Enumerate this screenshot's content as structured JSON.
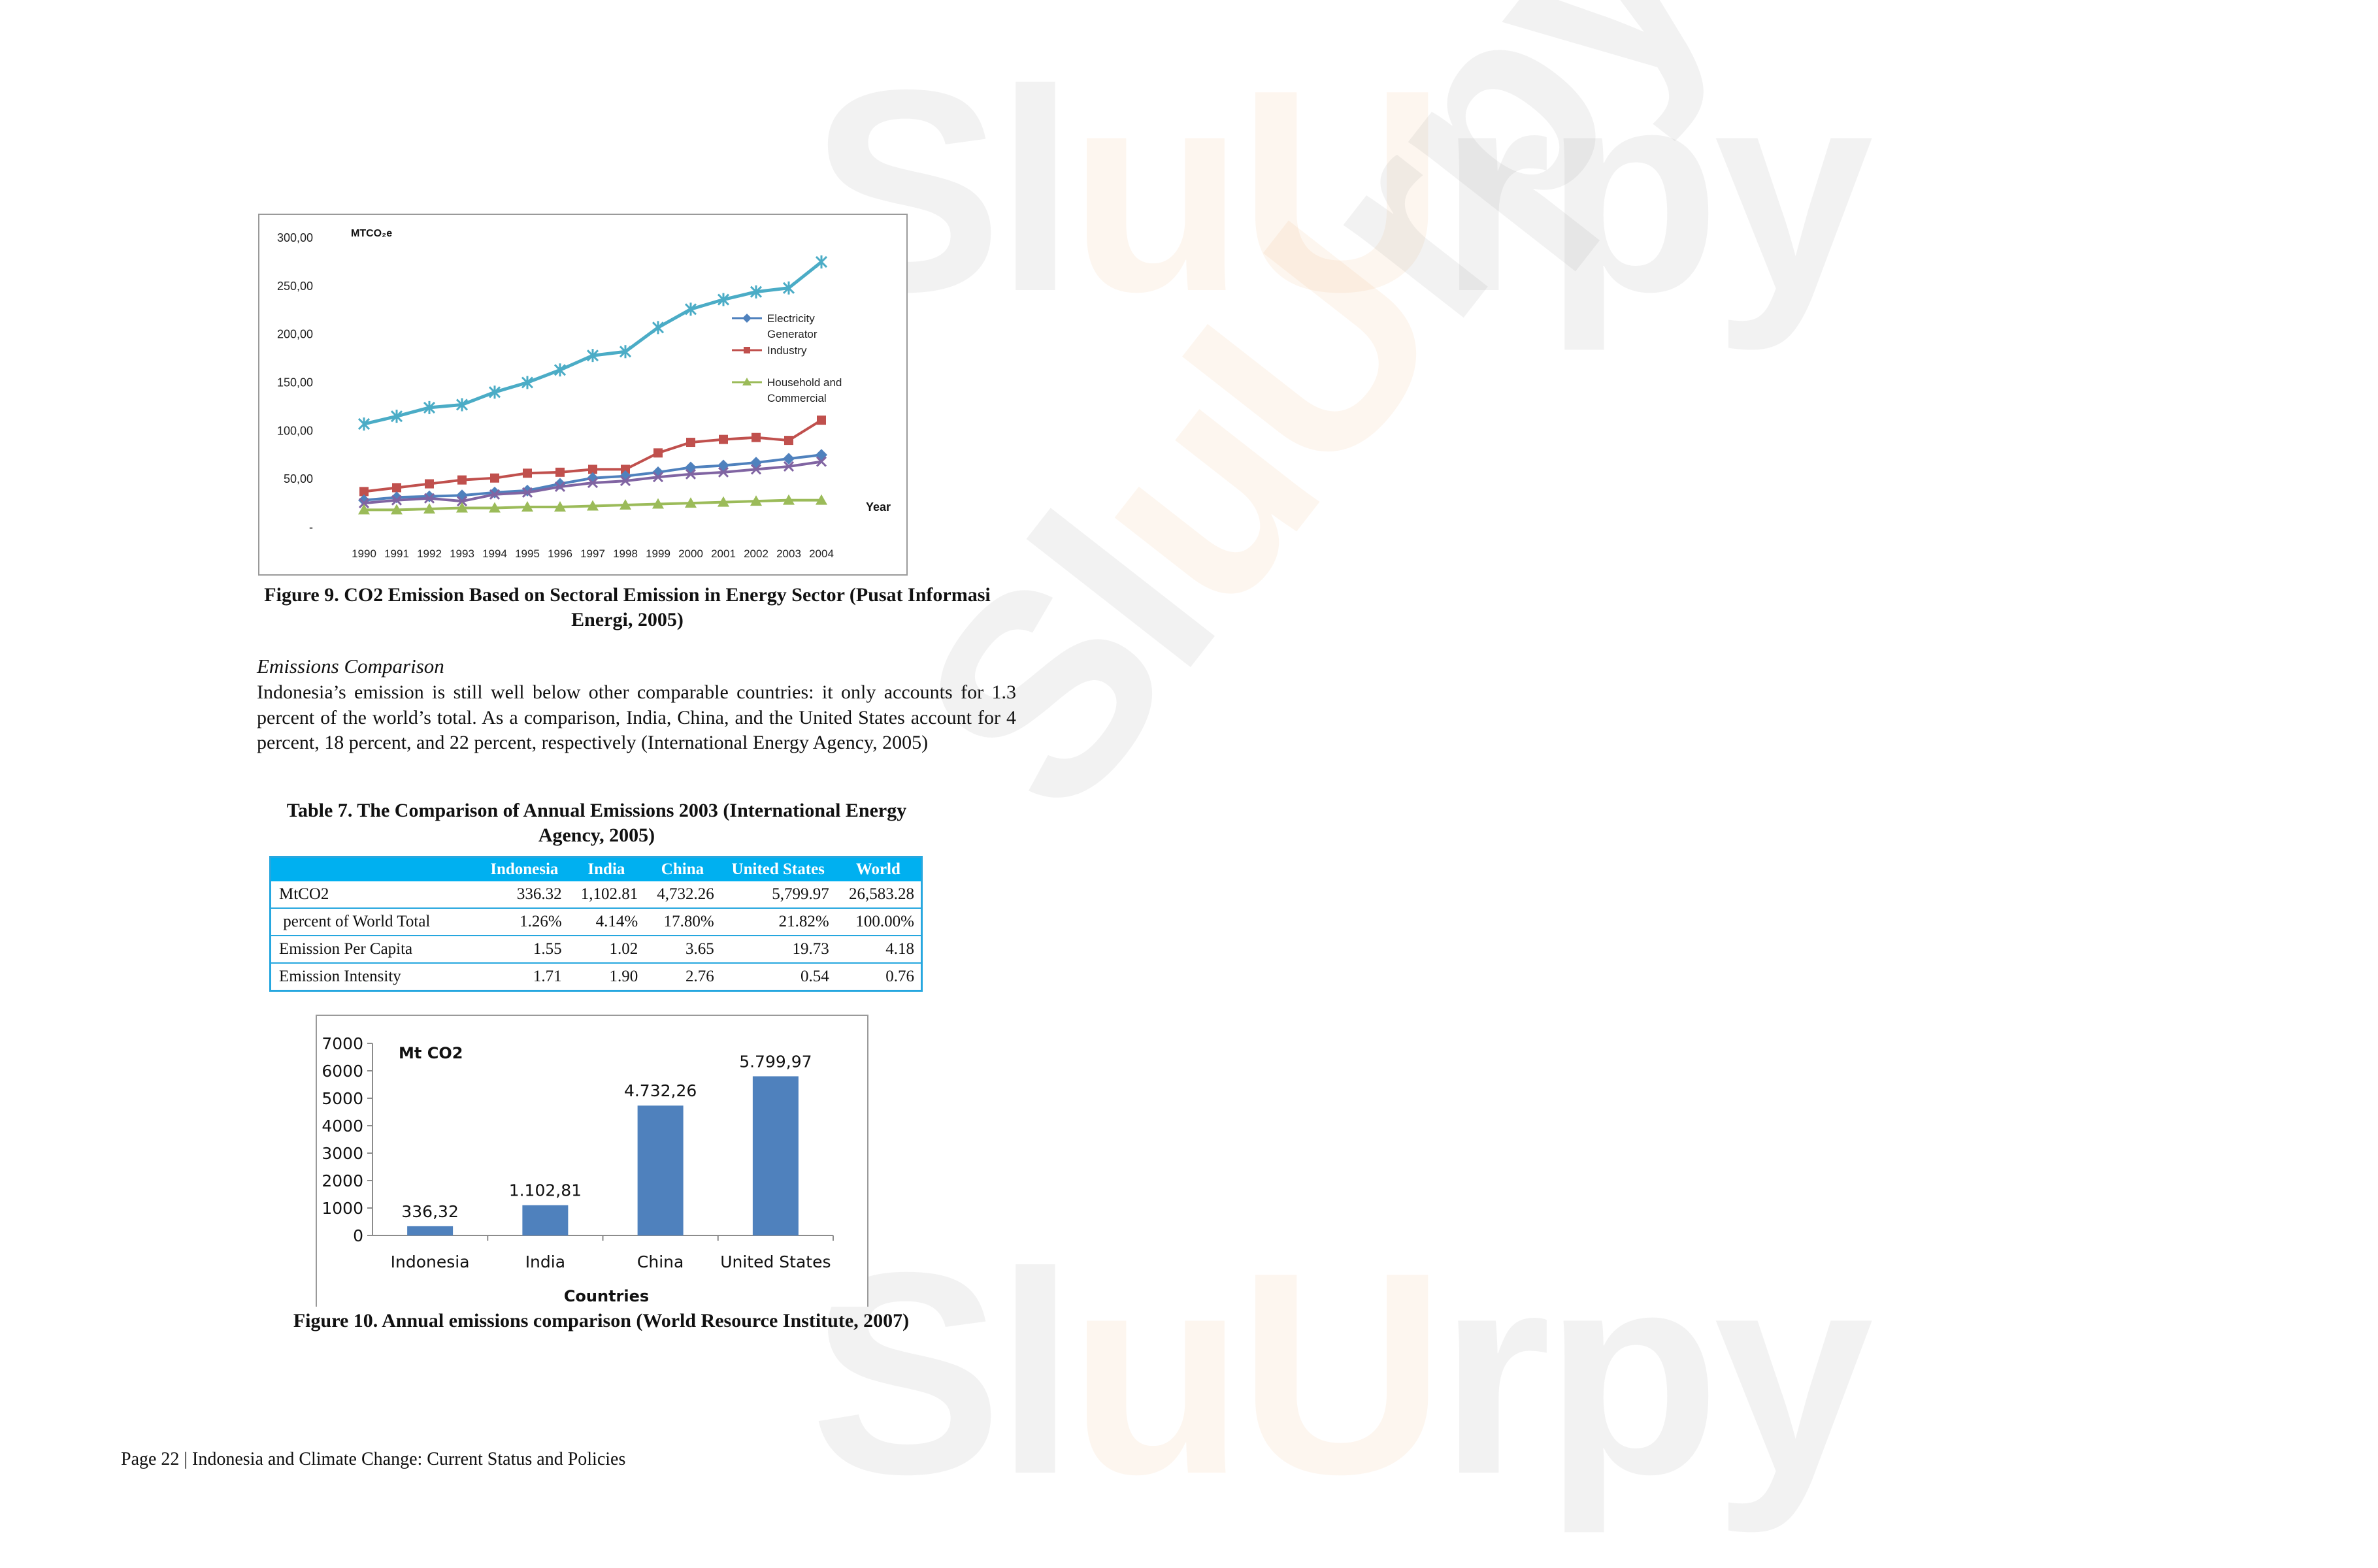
{
  "watermark": {
    "brand": "Sluurpy"
  },
  "figure9": {
    "caption": "Figure 9.  CO2 Emission Based on Sectoral Emission in Energy Sector (Pusat Informasi Energi, 2005)"
  },
  "section": {
    "title": "Emissions Comparison",
    "paragraph": "Indonesia’s emission is still well below other comparable countries: it only accounts for 1.3 percent of the world’s total.  As a comparison, India, China, and the United States account for 4 percent, 18 percent, and 22 percent, respectively (International Energy Agency, 2005)"
  },
  "table7": {
    "title": "Table 7. The Comparison of Annual Emissions 2003 (International Energy Agency, 2005)",
    "headers": [
      "",
      "Indonesia",
      "India",
      "China",
      "United States",
      "World"
    ],
    "rows": [
      [
        "MtCO2",
        "336.32",
        "1,102.81",
        "4,732.26",
        "5,799.97",
        "26,583.28"
      ],
      [
        " percent of World Total",
        "1.26%",
        "4.14%",
        "17.80%",
        "21.82%",
        "100.00%"
      ],
      [
        "Emission Per Capita",
        "1.55",
        "1.02",
        "3.65",
        "19.73",
        "4.18"
      ],
      [
        "Emission Intensity",
        "1.71",
        "1.90",
        "2.76",
        "0.54",
        "0.76"
      ]
    ]
  },
  "figure10": {
    "caption": "Figure 10.  Annual emissions comparison (World Resource Institute, 2007)"
  },
  "footer": {
    "text": "Page 22 | Indonesia and Climate Change: Current Status and Policies"
  },
  "chart_data": [
    {
      "type": "line",
      "title": "",
      "unit_label": "MTCO₂e",
      "xlabel": "Year",
      "ylabel": "",
      "x": [
        "1990",
        "1991",
        "1992",
        "1993",
        "1994",
        "1995",
        "1996",
        "1997",
        "1998",
        "1999",
        "2000",
        "2001",
        "2002",
        "2003",
        "2004"
      ],
      "ylim": [
        0,
        300
      ],
      "yticks": [
        "-",
        "50,00",
        "100,00",
        "150,00",
        "200,00",
        "250,00",
        "300,00"
      ],
      "grid": false,
      "legend_position": "right",
      "series": [
        {
          "name": "",
          "color": "#4bacc6",
          "marker": "star",
          "values": [
            107,
            115,
            124,
            127,
            140,
            150,
            163,
            178,
            182,
            207,
            226,
            236,
            244,
            248,
            275
          ]
        },
        {
          "name": "Industry",
          "color": "#c0504d",
          "marker": "square",
          "values": [
            37,
            41,
            45,
            49,
            51,
            56,
            57,
            60,
            60,
            77,
            88,
            91,
            93,
            90,
            111
          ]
        },
        {
          "name": "Electricity Generator",
          "color": "#4f81bd",
          "marker": "diamond",
          "values": [
            28,
            31,
            32,
            33,
            36,
            38,
            45,
            51,
            53,
            57,
            62,
            64,
            67,
            71,
            75
          ]
        },
        {
          "name": "",
          "color": "#8064a2",
          "marker": "x",
          "values": [
            25,
            28,
            30,
            27,
            34,
            36,
            42,
            46,
            48,
            52,
            55,
            57,
            60,
            63,
            68
          ]
        },
        {
          "name": "Household and Commercial",
          "color": "#9bbb59",
          "marker": "triangle",
          "values": [
            18,
            18,
            19,
            20,
            20,
            21,
            21,
            22,
            23,
            24,
            25,
            26,
            27,
            28,
            28
          ]
        }
      ]
    },
    {
      "type": "bar",
      "title": "",
      "unit_label": "Mt CO2",
      "xlabel": "Countries",
      "ylabel": "",
      "categories": [
        "Indonesia",
        "India",
        "China",
        "United States"
      ],
      "values": [
        336.32,
        1102.81,
        4732.26,
        5799.97
      ],
      "value_labels": [
        "336,32",
        "1.102,81",
        "4.732,26",
        "5.799,97"
      ],
      "ylim": [
        0,
        7000
      ],
      "yticks": [
        "0",
        "1000",
        "2000",
        "3000",
        "4000",
        "5000",
        "6000",
        "7000"
      ],
      "color": "#4f81bd",
      "grid": false
    }
  ]
}
